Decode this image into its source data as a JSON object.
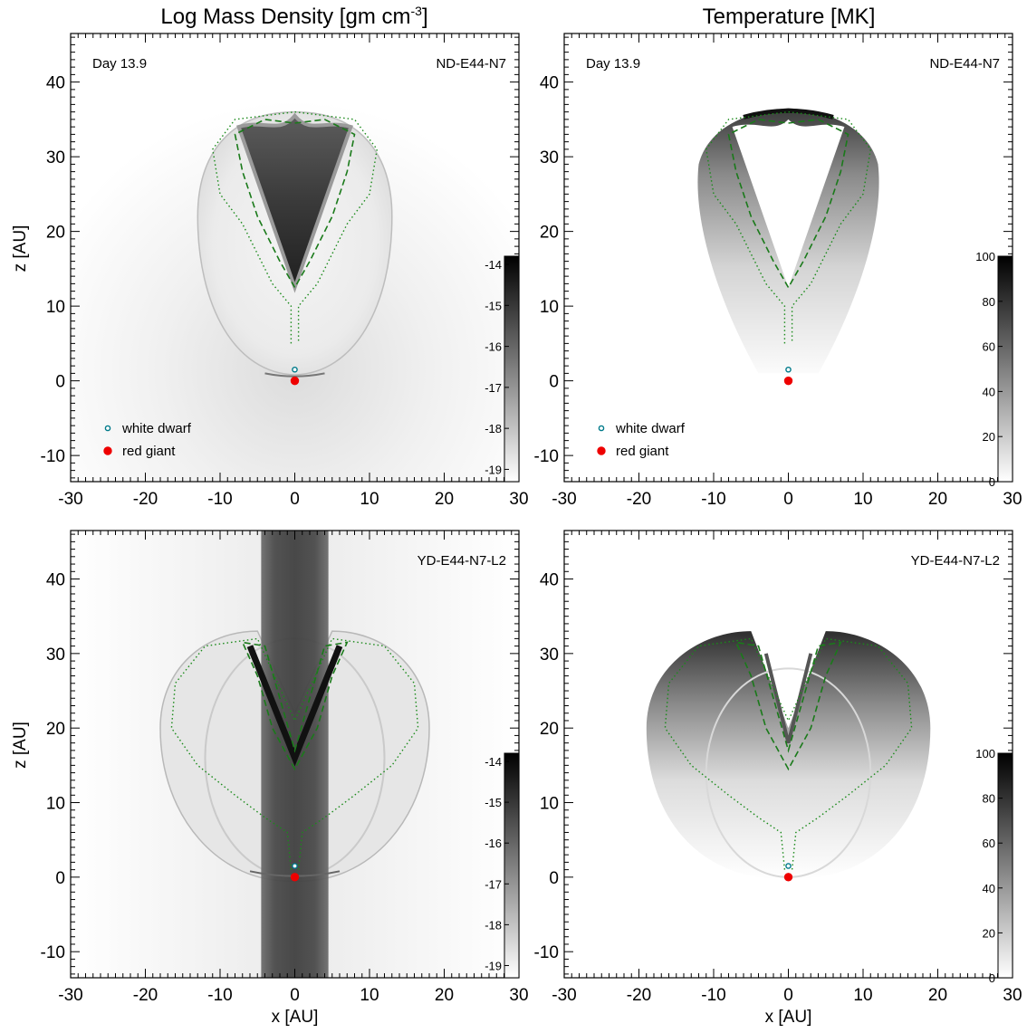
{
  "figure": {
    "column_titles": [
      {
        "text": "Log Mass Density [gm cm",
        "sup": "-3",
        "tail": "]"
      },
      {
        "text": "Temperature [MK]",
        "sup": "",
        "tail": ""
      }
    ]
  },
  "chart_data": [
    {
      "type": "heatmap",
      "quantity": "Log Mass Density",
      "day_label": "Day 13.9",
      "model_label": "ND-E44-N7",
      "xlabel": "",
      "ylabel": "z [AU]",
      "xlim": [
        -30,
        30
      ],
      "ylim": [
        -13.5,
        46.5
      ],
      "xticks": [
        -30,
        -20,
        -10,
        0,
        10,
        20,
        30
      ],
      "yticks": [
        -10,
        0,
        10,
        20,
        30,
        40
      ],
      "colorbar": {
        "ticks": [
          -19,
          -18,
          -17,
          -16,
          -15,
          -14
        ],
        "range": [
          -19.3,
          -13.8
        ],
        "dark_end": "top"
      },
      "legend": [
        {
          "label": "white dwarf",
          "marker": "open-circle",
          "color": "#00a0a0"
        },
        {
          "label": "red giant",
          "marker": "filled-circle",
          "color": "#ee0000"
        }
      ],
      "points": [
        {
          "name": "white dwarf",
          "x": 0,
          "y": 1.5
        },
        {
          "name": "red giant",
          "x": 0,
          "y": 0
        }
      ]
    },
    {
      "type": "heatmap",
      "quantity": "Temperature",
      "day_label": "Day 13.9",
      "model_label": "ND-E44-N7",
      "xlabel": "",
      "ylabel": "",
      "xlim": [
        -30,
        30
      ],
      "ylim": [
        -13.5,
        46.5
      ],
      "xticks": [
        -30,
        -20,
        -10,
        0,
        10,
        20,
        30
      ],
      "yticks": [
        -10,
        0,
        10,
        20,
        30,
        40
      ],
      "colorbar": {
        "ticks": [
          0,
          20,
          40,
          60,
          80,
          100
        ],
        "range": [
          0,
          100
        ],
        "dark_end": "top"
      },
      "legend": [
        {
          "label": "white dwarf",
          "marker": "open-circle",
          "color": "#00a0a0"
        },
        {
          "label": "red giant",
          "marker": "filled-circle",
          "color": "#ee0000"
        }
      ],
      "points": [
        {
          "name": "white dwarf",
          "x": 0,
          "y": 1.5
        },
        {
          "name": "red giant",
          "x": 0,
          "y": 0
        }
      ]
    },
    {
      "type": "heatmap",
      "quantity": "Log Mass Density",
      "day_label": "",
      "model_label": "YD-E44-N7-L2",
      "xlabel": "x [AU]",
      "ylabel": "z [AU]",
      "xlim": [
        -30,
        30
      ],
      "ylim": [
        -13.5,
        46.5
      ],
      "xticks": [
        -30,
        -20,
        -10,
        0,
        10,
        20,
        30
      ],
      "yticks": [
        -10,
        0,
        10,
        20,
        30,
        40
      ],
      "colorbar": {
        "ticks": [
          -19,
          -18,
          -17,
          -16,
          -15,
          -14
        ],
        "range": [
          -19.3,
          -13.8
        ],
        "dark_end": "top"
      },
      "legend": [],
      "points": [
        {
          "name": "white dwarf",
          "x": 0,
          "y": 1.5
        },
        {
          "name": "red giant",
          "x": 0,
          "y": 0
        }
      ]
    },
    {
      "type": "heatmap",
      "quantity": "Temperature",
      "day_label": "",
      "model_label": "YD-E44-N7-L2",
      "xlabel": "x [AU]",
      "ylabel": "",
      "xlim": [
        -30,
        30
      ],
      "ylim": [
        -13.5,
        46.5
      ],
      "xticks": [
        -30,
        -20,
        -10,
        0,
        10,
        20,
        30
      ],
      "yticks": [
        -10,
        0,
        10,
        20,
        30,
        40
      ],
      "colorbar": {
        "ticks": [
          0,
          20,
          40,
          60,
          80,
          100
        ],
        "range": [
          0,
          100
        ],
        "dark_end": "top"
      },
      "legend": [],
      "points": [
        {
          "name": "white dwarf",
          "x": 0,
          "y": 1.5
        },
        {
          "name": "red giant",
          "x": 0,
          "y": 0
        }
      ]
    }
  ]
}
